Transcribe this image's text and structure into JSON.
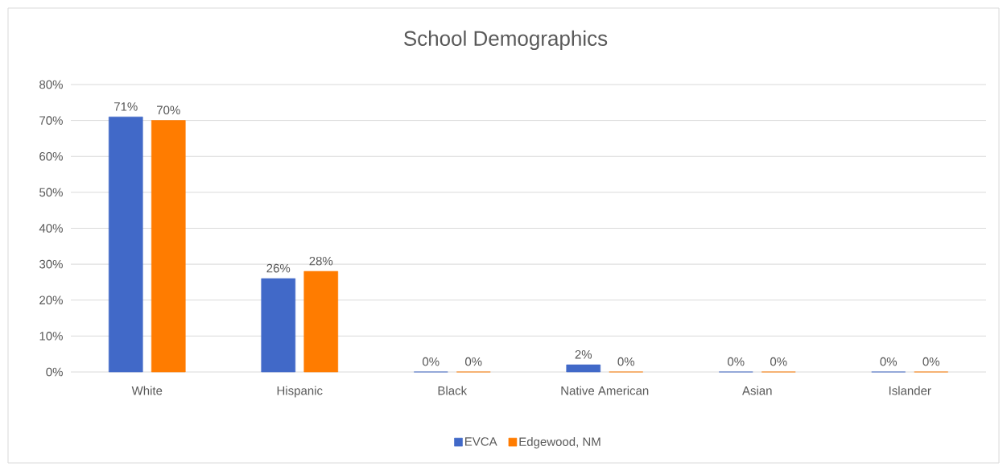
{
  "chart_data": {
    "type": "bar",
    "title": "School Demographics",
    "categories": [
      "White",
      "Hispanic",
      "Black",
      "Native American",
      "Asian",
      "Islander"
    ],
    "series": [
      {
        "name": "EVCA",
        "color": "#4169c8",
        "values": [
          71,
          26,
          0,
          2,
          0,
          0
        ],
        "value_labels": [
          "71%",
          "26%",
          "0%",
          "2%",
          "0%",
          "0%"
        ]
      },
      {
        "name": "Edgewood, NM",
        "color": "#ff7c00",
        "values": [
          70,
          28,
          0,
          0,
          0,
          0
        ],
        "value_labels": [
          "70%",
          "28%",
          "0%",
          "0%",
          "0%",
          "0%"
        ]
      }
    ],
    "ylim": [
      0,
      80
    ],
    "yticks": [
      {
        "value": 0,
        "label": "0%"
      },
      {
        "value": 10,
        "label": "10%"
      },
      {
        "value": 20,
        "label": "20%"
      },
      {
        "value": 30,
        "label": "30%"
      },
      {
        "value": 40,
        "label": "40%"
      },
      {
        "value": 50,
        "label": "50%"
      },
      {
        "value": 60,
        "label": "60%"
      },
      {
        "value": 70,
        "label": "70%"
      },
      {
        "value": 80,
        "label": "80%"
      }
    ],
    "grid": "y",
    "legend": "bottom"
  }
}
